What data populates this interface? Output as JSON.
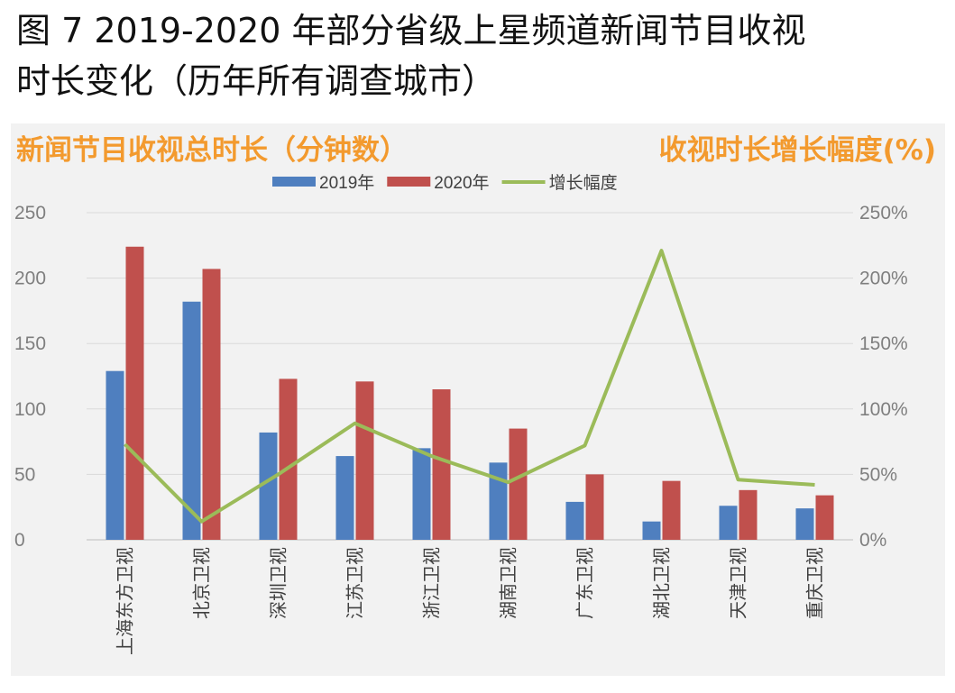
{
  "figure": {
    "title_line1": "图 7   2019-2020 年部分省级上星频道新闻节目收视",
    "title_line2": "时长变化（历年所有调查城市）"
  },
  "chart_data": {
    "type": "bar",
    "header_left": "新闻节目收视总时长（分钟数）",
    "header_right": "收视时长增长幅度(%)",
    "categories": [
      "上海东方卫视",
      "北京卫视",
      "深圳卫视",
      "江苏卫视",
      "浙江卫视",
      "湖南卫视",
      "广东卫视",
      "湖北卫视",
      "天津卫视",
      "重庆卫视"
    ],
    "series": [
      {
        "name": "2019年",
        "kind": "bar",
        "axis": "left",
        "color": "#4f7fbf",
        "values": [
          129,
          182,
          82,
          64,
          70,
          59,
          29,
          14,
          26,
          24
        ]
      },
      {
        "name": "2020年",
        "kind": "bar",
        "axis": "left",
        "color": "#c0504d",
        "values": [
          224,
          207,
          123,
          121,
          115,
          85,
          50,
          45,
          38,
          34
        ]
      },
      {
        "name": "增长幅度",
        "kind": "line",
        "axis": "right",
        "color": "#9bbb59",
        "values": [
          73,
          14,
          50,
          89,
          64,
          44,
          72,
          221,
          46,
          42
        ]
      }
    ],
    "y_left": {
      "min": 0,
      "max": 250,
      "ticks": [
        "0",
        "50",
        "100",
        "150",
        "200",
        "250"
      ]
    },
    "y_right": {
      "min": 0,
      "max": 250,
      "ticks": [
        "0%",
        "50%",
        "100%",
        "150%",
        "200%",
        "250%"
      ]
    },
    "grid": true,
    "legend_position": "top"
  }
}
